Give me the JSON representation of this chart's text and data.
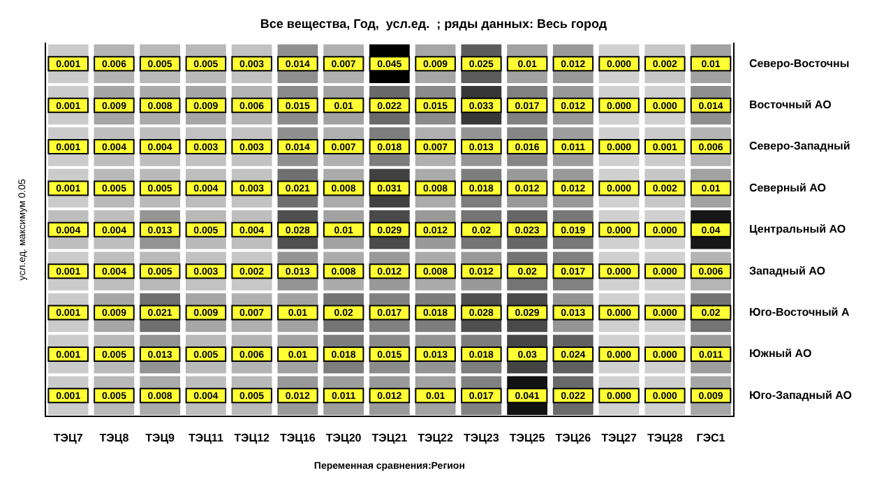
{
  "chart_data": {
    "type": "heatmap",
    "title": "Все вещества, Год,  усл.ед.  ; ряды данных: Весь город",
    "xlabel": "Переменная сравнения:Регион",
    "ylabel": "усл.ед. максимум 0.05",
    "categories": [
      "ТЭЦ7",
      "ТЭЦ8",
      "ТЭЦ9",
      "ТЭЦ11",
      "ТЭЦ12",
      "ТЭЦ16",
      "ТЭЦ20",
      "ТЭЦ21",
      "ТЭЦ22",
      "ТЭЦ23",
      "ТЭЦ25",
      "ТЭЦ26",
      "ТЭЦ27",
      "ТЭЦ28",
      "ГЭС1"
    ],
    "y_categories": [
      "Северо-Восточны",
      "Восточный АО",
      "Северо-Западный",
      "Северный АО",
      "Центральный АО",
      "Западный АО",
      "Юго-Восточный А",
      "Южный АО",
      "Юго-Западный АО"
    ],
    "cells": [
      [
        0.001,
        0.006,
        0.005,
        0.005,
        0.003,
        0.014,
        0.007,
        0.045,
        0.009,
        0.025,
        0.01,
        0.012,
        0.0,
        0.002,
        0.01
      ],
      [
        0.001,
        0.009,
        0.008,
        0.009,
        0.006,
        0.015,
        0.01,
        0.022,
        0.015,
        0.033,
        0.017,
        0.012,
        0.0,
        0.0,
        0.014
      ],
      [
        0.001,
        0.004,
        0.004,
        0.003,
        0.003,
        0.014,
        0.007,
        0.018,
        0.007,
        0.013,
        0.016,
        0.011,
        0.0,
        0.001,
        0.006
      ],
      [
        0.001,
        0.005,
        0.005,
        0.004,
        0.003,
        0.021,
        0.008,
        0.031,
        0.008,
        0.018,
        0.012,
        0.012,
        0.0,
        0.002,
        0.01
      ],
      [
        0.004,
        0.004,
        0.013,
        0.005,
        0.004,
        0.028,
        0.01,
        0.029,
        0.012,
        0.02,
        0.023,
        0.019,
        0.0,
        0.0,
        0.04
      ],
      [
        0.001,
        0.004,
        0.005,
        0.003,
        0.002,
        0.013,
        0.008,
        0.012,
        0.008,
        0.012,
        0.02,
        0.017,
        0.0,
        0.0,
        0.006
      ],
      [
        0.001,
        0.009,
        0.021,
        0.009,
        0.007,
        0.01,
        0.02,
        0.017,
        0.018,
        0.028,
        0.029,
        0.013,
        0.0,
        0.0,
        0.02
      ],
      [
        0.001,
        0.005,
        0.013,
        0.005,
        0.006,
        0.01,
        0.018,
        0.015,
        0.013,
        0.018,
        0.03,
        0.024,
        0.0,
        0.0,
        0.011
      ],
      [
        0.001,
        0.005,
        0.008,
        0.004,
        0.005,
        0.012,
        0.011,
        0.012,
        0.01,
        0.017,
        0.041,
        0.022,
        0.0,
        0.0,
        0.009
      ]
    ],
    "cell_labels": [
      [
        "0.001",
        "0.006",
        "0.005",
        "0.005",
        "0.003",
        "0.014",
        "0.007",
        "0.045",
        "0.009",
        "0.025",
        "0.01",
        "0.012",
        "0.000",
        "0.002",
        "0.01"
      ],
      [
        "0.001",
        "0.009",
        "0.008",
        "0.009",
        "0.006",
        "0.015",
        "0.01",
        "0.022",
        "0.015",
        "0.033",
        "0.017",
        "0.012",
        "0.000",
        "0.000",
        "0.014"
      ],
      [
        "0.001",
        "0.004",
        "0.004",
        "0.003",
        "0.003",
        "0.014",
        "0.007",
        "0.018",
        "0.007",
        "0.013",
        "0.016",
        "0.011",
        "0.000",
        "0.001",
        "0.006"
      ],
      [
        "0.001",
        "0.005",
        "0.005",
        "0.004",
        "0.003",
        "0.021",
        "0.008",
        "0.031",
        "0.008",
        "0.018",
        "0.012",
        "0.012",
        "0.000",
        "0.002",
        "0.01"
      ],
      [
        "0.004",
        "0.004",
        "0.013",
        "0.005",
        "0.004",
        "0.028",
        "0.01",
        "0.029",
        "0.012",
        "0.02",
        "0.023",
        "0.019",
        "0.000",
        "0.000",
        "0.04"
      ],
      [
        "0.001",
        "0.004",
        "0.005",
        "0.003",
        "0.002",
        "0.013",
        "0.008",
        "0.012",
        "0.008",
        "0.012",
        "0.02",
        "0.017",
        "0.000",
        "0.000",
        "0.006"
      ],
      [
        "0.001",
        "0.009",
        "0.021",
        "0.009",
        "0.007",
        "0.01",
        "0.02",
        "0.017",
        "0.018",
        "0.028",
        "0.029",
        "0.013",
        "0.000",
        "0.000",
        "0.02"
      ],
      [
        "0.001",
        "0.005",
        "0.013",
        "0.005",
        "0.006",
        "0.01",
        "0.018",
        "0.015",
        "0.013",
        "0.018",
        "0.03",
        "0.024",
        "0.000",
        "0.000",
        "0.011"
      ],
      [
        "0.001",
        "0.005",
        "0.008",
        "0.004",
        "0.005",
        "0.012",
        "0.011",
        "0.012",
        "0.01",
        "0.017",
        "0.041",
        "0.022",
        "0.000",
        "0.000",
        "0.009"
      ]
    ]
  }
}
